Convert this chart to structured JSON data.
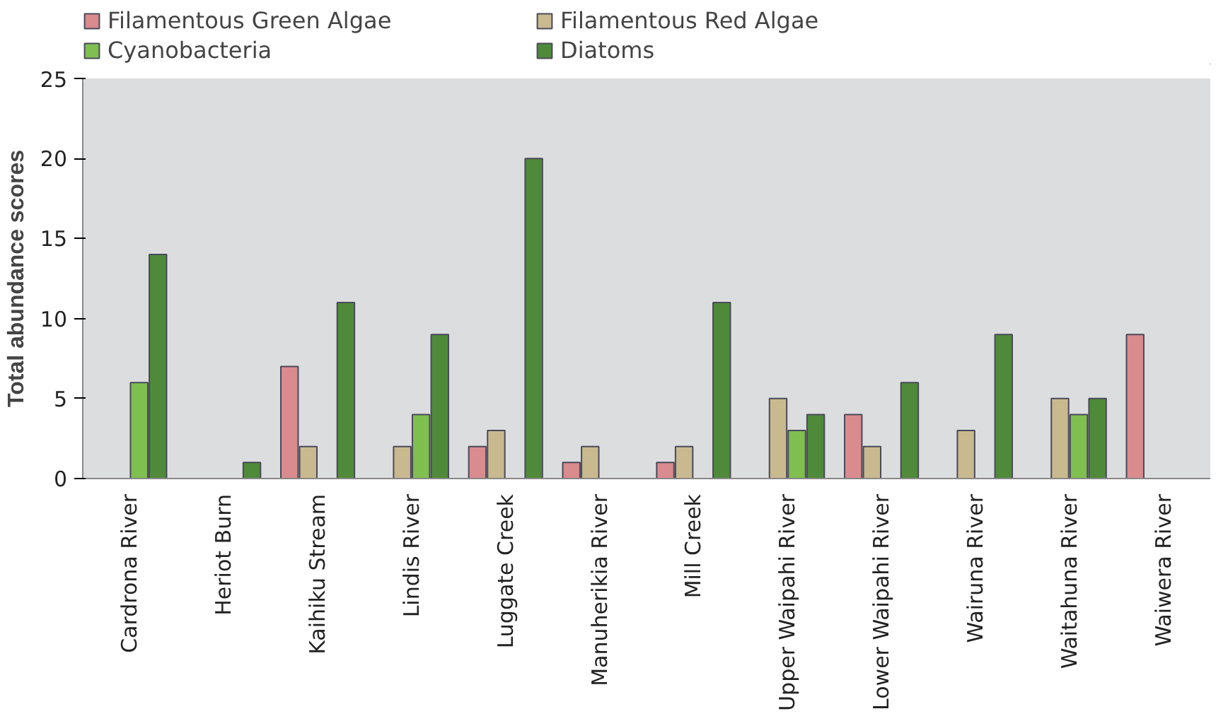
{
  "chart_data": {
    "type": "bar",
    "ylabel": "Total abundance scores",
    "categories": [
      "Cardrona River",
      "Heriot Burn",
      "Kaihiku Stream",
      "Lindis River",
      "Luggate Creek",
      "Manuherikia River",
      "Mill Creek",
      "Upper Waipahi River",
      "Lower Waipahi River",
      "Wairuna River",
      "Waitahuna River",
      "Waiwera River"
    ],
    "series": [
      {
        "name": "Filamentous Green Algae",
        "color": "#d98b8e",
        "values": [
          null,
          null,
          7,
          null,
          2,
          1,
          1,
          null,
          4,
          null,
          null,
          9
        ]
      },
      {
        "name": "Filamentous Red Algae",
        "color": "#c9b98f",
        "values": [
          null,
          null,
          2,
          2,
          3,
          2,
          2,
          5,
          2,
          3,
          5,
          null
        ]
      },
      {
        "name": "Cyanobacteria",
        "color": "#7fbf4f",
        "values": [
          6,
          null,
          null,
          4,
          null,
          null,
          null,
          3,
          null,
          null,
          4,
          null
        ]
      },
      {
        "name": "Diatoms",
        "color": "#4f8a3a",
        "values": [
          14,
          1,
          11,
          9,
          20,
          null,
          11,
          4,
          6,
          9,
          5,
          null
        ]
      }
    ],
    "ylim": [
      0,
      25
    ],
    "yticks": [
      0,
      5,
      10,
      15,
      20,
      25
    ],
    "grid": false,
    "legend": "top"
  }
}
